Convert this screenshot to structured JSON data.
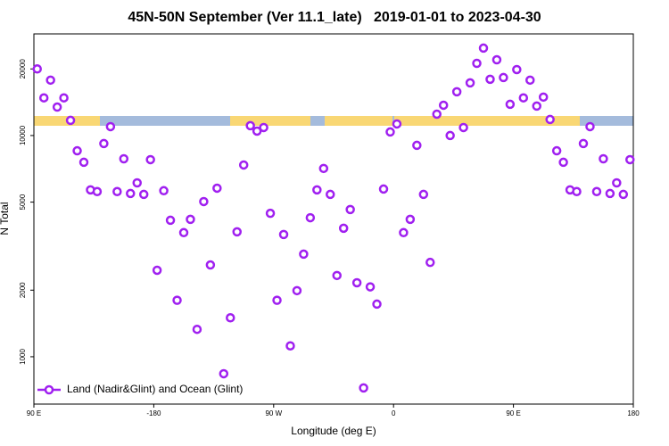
{
  "chart_data": {
    "type": "scatter",
    "title": "45N-50N September (Ver 11.1_late)   2019-01-01 to 2023-04-30",
    "x_label": "Longitude (deg E)",
    "y_label": "N Total",
    "log_y": true,
    "legend": "bottomleft",
    "xlim": [
      -270,
      180
    ],
    "ylim": [
      611,
      28800
    ],
    "xticks": [
      {
        "value": -270,
        "label": "90 E"
      },
      -180,
      {
        "value": -90,
        "label": "90 W"
      },
      0,
      {
        "value": 90,
        "label": "90 E"
      },
      180
    ],
    "yticks": [
      1000,
      2000,
      5000,
      10000,
      20000
    ],
    "series": [
      {
        "name": "Land (Nadir&Glint) and Ocean (Glint)",
        "color": "#a020f0",
        "x": [
          -267.5,
          -262.5,
          -257.5,
          -252.5,
          -247.5,
          -242.5,
          -237.5,
          -232.5,
          -227.5,
          -222.5,
          -217.5,
          -212.5,
          -207.5,
          -202.5,
          -197.5,
          -192.5,
          -187.5,
          -182.5,
          -177.5,
          -172.5,
          -167.5,
          -162.5,
          -157.5,
          -152.5,
          -147.5,
          -142.5,
          -137.5,
          -132.5,
          -127.5,
          -122.5,
          -117.5,
          -112.5,
          -107.5,
          -102.5,
          -97.5,
          -92.5,
          -87.5,
          -82.5,
          -77.5,
          -72.5,
          -67.5,
          -62.5,
          -57.5,
          -52.5,
          -47.5,
          -42.5,
          -37.5,
          -32.5,
          -27.5,
          -22.5,
          -17.5,
          -12.5,
          -7.5,
          -2.5,
          2.5,
          7.5,
          12.5,
          17.5,
          22.5,
          27.5,
          32.5,
          37.5,
          42.5,
          47.5,
          52.5,
          57.5,
          62.5,
          67.5,
          72.5,
          77.5,
          82.5,
          87.5,
          92.5,
          97.5,
          102.5,
          107.5,
          112.5,
          117.5,
          122.5,
          127.5,
          132.5,
          137.5,
          142.5,
          147.5,
          152.5,
          157.5,
          162.5,
          167.5,
          172.5,
          177.5
        ],
        "values": [
          20000,
          14800,
          17800,
          13450,
          14800,
          11710,
          8530,
          7570,
          5680,
          5580,
          9200,
          10970,
          5580,
          7850,
          5470,
          6110,
          5420,
          7780,
          2460,
          5630,
          4140,
          1800,
          3640,
          4180,
          1330,
          5030,
          2600,
          5780,
          838,
          1500,
          3670,
          7360,
          11080,
          10470,
          10870,
          4450,
          1800,
          3570,
          1120,
          1990,
          2910,
          4250,
          5680,
          7100,
          5420,
          2330,
          3810,
          4630,
          2160,
          723,
          2070,
          1730,
          5730,
          10380,
          11280,
          3640,
          4180,
          9030,
          5420,
          2670,
          12490,
          13710,
          10000,
          15770,
          10870,
          17300,
          21200,
          24840,
          17960,
          22000,
          18290,
          13840,
          19870,
          14800,
          17800,
          13590,
          14920,
          11820,
          8530,
          7570,
          5680,
          5580,
          9200,
          10970,
          5580,
          7850,
          5470,
          6110,
          5420,
          7780
        ]
      }
    ]
  }
}
